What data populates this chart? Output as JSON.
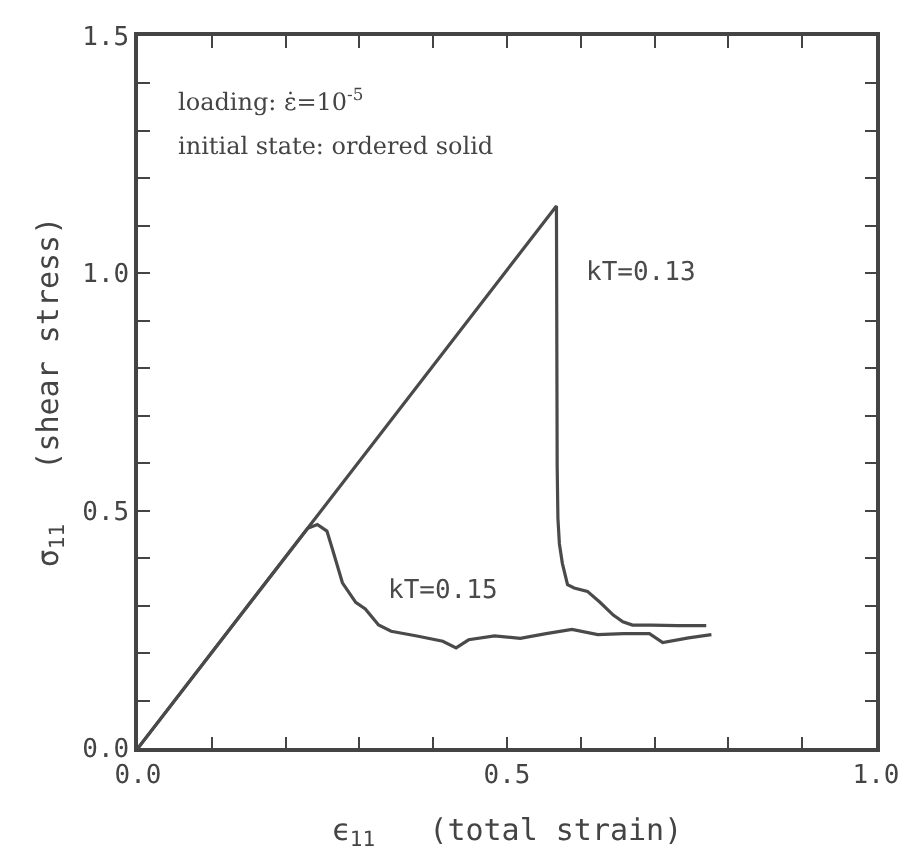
{
  "chart_data": {
    "type": "line",
    "xlabel": "ϵ$_{11}$   (total strain)",
    "ylabel": "σ$_{11}$   (shear stress)",
    "xlim": [
      0,
      1.0
    ],
    "ylim": [
      0,
      1.5
    ],
    "xticks": [
      "0.0",
      {
        "value": 0.1,
        "label": null
      },
      {
        "value": 0.2,
        "label": null
      },
      {
        "value": 0.3,
        "label": null
      },
      {
        "value": 0.4,
        "label": null
      },
      {
        "value": 0.5,
        "label": "0.5"
      },
      {
        "value": 0.6,
        "label": null
      },
      {
        "value": 0.7,
        "label": null
      },
      {
        "value": 0.8,
        "label": null
      },
      {
        "value": 0.9,
        "label": null
      },
      {
        "value": 1.0,
        "label": "1.0"
      }
    ],
    "yticks": [
      {
        "value": 0,
        "label": "0.0"
      },
      {
        "value": 0.1,
        "label": null
      },
      {
        "value": 0.2,
        "label": null
      },
      {
        "value": 0.3,
        "label": null
      },
      {
        "value": 0.4,
        "label": null
      },
      {
        "value": 0.5,
        "label": "0.5"
      },
      {
        "value": 0.6,
        "label": null
      },
      {
        "value": 0.7,
        "label": null
      },
      {
        "value": 0.8,
        "label": null
      },
      {
        "value": 0.9,
        "label": null
      },
      {
        "value": 1.0,
        "label": "1.0"
      },
      {
        "value": 1.1,
        "label": null
      },
      {
        "value": 1.2,
        "label": null
      },
      {
        "value": 1.3,
        "label": null
      },
      {
        "value": 1.4,
        "label": null
      },
      {
        "value": 1.5,
        "label": "1.5"
      }
    ],
    "legend": false,
    "marker": "none",
    "line_style": "solid",
    "series": [
      {
        "name": "kT=0.13",
        "color": "#4a4a4a",
        "x": [
          0,
          0.567,
          0.568,
          0.569,
          0.571,
          0.575,
          0.582,
          0.591,
          0.609,
          0.626,
          0.644,
          0.657,
          0.67,
          0.696,
          0.731,
          0.77
        ],
        "values": [
          0,
          1.142,
          0.593,
          0.484,
          0.43,
          0.389,
          0.344,
          0.337,
          0.33,
          0.307,
          0.28,
          0.266,
          0.259,
          0.259,
          0.258,
          0.258
        ]
      },
      {
        "name": "kT=0.15",
        "color": "#4a4a4a",
        "x": [
          0,
          0.23,
          0.243,
          0.256,
          0.264,
          0.277,
          0.295,
          0.308,
          0.326,
          0.343,
          0.378,
          0.413,
          0.431,
          0.448,
          0.483,
          0.518,
          0.553,
          0.588,
          0.623,
          0.658,
          0.693,
          0.711,
          0.746,
          0.777
        ],
        "values": [
          0,
          0.463,
          0.471,
          0.457,
          0.416,
          0.348,
          0.307,
          0.293,
          0.259,
          0.246,
          0.236,
          0.225,
          0.211,
          0.228,
          0.236,
          0.231,
          0.241,
          0.25,
          0.239,
          0.241,
          0.241,
          0.222,
          0.232,
          0.239
        ]
      }
    ],
    "annotations": [
      "loading: ε̇=10$^{-5}$",
      "initial state: ordered solid"
    ]
  }
}
